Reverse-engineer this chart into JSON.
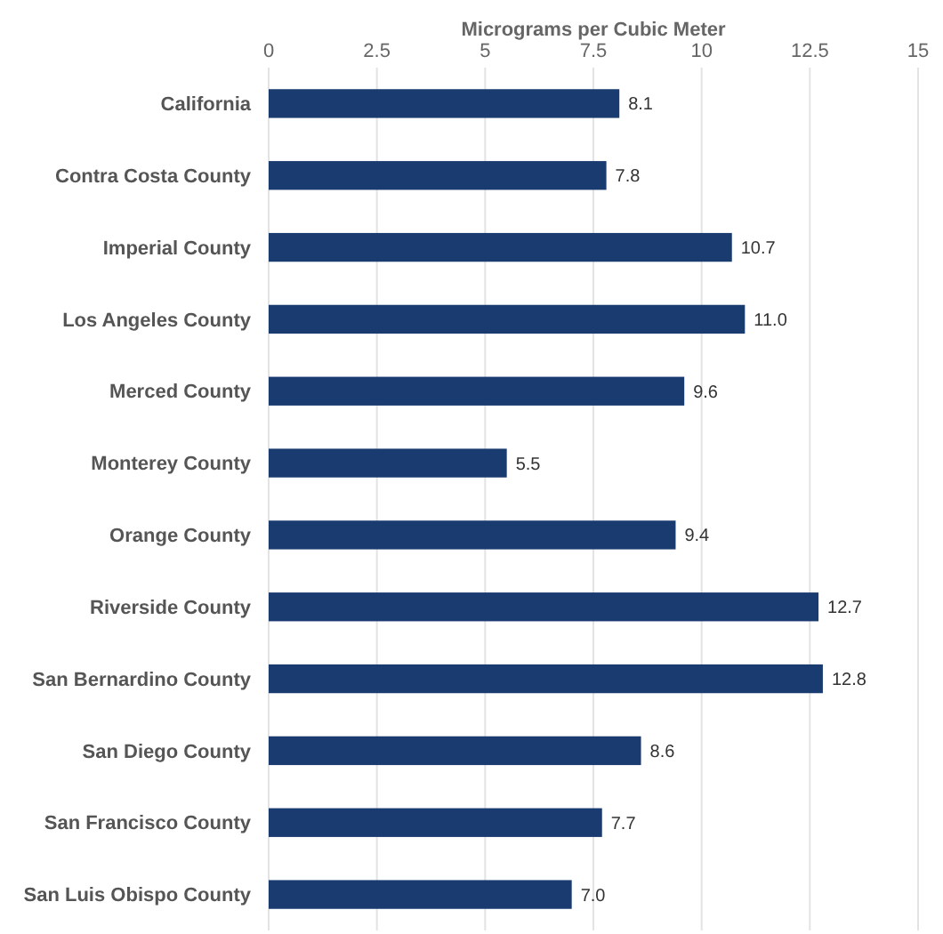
{
  "chart_data": {
    "type": "bar",
    "orientation": "horizontal",
    "xlabel": "Micrograms per Cubic Meter",
    "categories": [
      "California",
      "Contra Costa County",
      "Imperial County",
      "Los Angeles County",
      "Merced County",
      "Monterey County",
      "Orange County",
      "Riverside County",
      "San Bernardino County",
      "San Diego County",
      "San Francisco County",
      "San Luis Obispo County"
    ],
    "values": [
      8.1,
      7.8,
      10.7,
      11.0,
      9.6,
      5.5,
      9.4,
      12.7,
      12.8,
      8.6,
      7.7,
      7.0
    ],
    "value_labels": [
      "8.1",
      "7.8",
      "10.7",
      "11.0",
      "9.6",
      "5.5",
      "9.4",
      "12.7",
      "12.8",
      "8.6",
      "7.7",
      "7.0"
    ],
    "color": "#1a3b70",
    "xlim": [
      0,
      15
    ],
    "xticks": [
      0,
      2.5,
      5,
      7.5,
      10,
      12.5,
      15
    ],
    "grid": "x"
  }
}
